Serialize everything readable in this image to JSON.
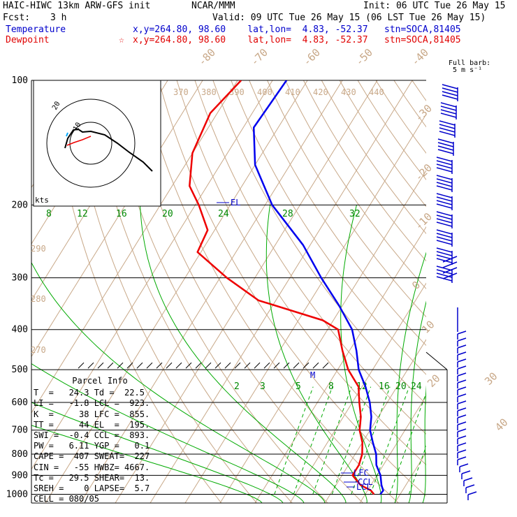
{
  "header": {
    "model": "HAIC-HIWC 13km ARW-GFS init",
    "org": "NCAR/MMM",
    "init": "Init: 06 UTC Tue 26 May 15",
    "fcst_label": "Fcst:",
    "fcst_value": "3 h",
    "valid": "Valid: 09 UTC Tue 26 May 15 (06 LST Tue 26 May 15)",
    "temp_label": "Temperature",
    "temp_loc": "x,y=264.80, 98.60    lat,lon=  4.83, -52.37   stn=SOCA,81405",
    "dew_label": "Dewpoint",
    "dew_marker": "☆",
    "dew_loc": "x,y=264.80, 98.60    lat,lon=  4.83, -52.37   stn=SOCA,81405",
    "barb_title": "Full barb:",
    "barb_unit": "5 m s⁻¹"
  },
  "parcel_info": {
    "title": "Parcel Info",
    "rows": [
      "T  =   24.3 Td =  22.5",
      "LI =   -1.8 LCL =  923.",
      "K  =     38 LFC =  855.",
      "TT =     44 EL  =  195.",
      "SWI =  -0.4 CCL =  893.",
      "PW =   6.11 YGP =   0.1",
      "CAPE =  407 SWEAT=  227",
      "CIN =   -55 HWBZ= 4667.",
      "Tc =   29.5 SHEAR=  13.",
      "SREH =    0 LAPSE=  5.7",
      "CELL = 080/05"
    ]
  },
  "chart_data": {
    "type": "line",
    "subtype": "skew-T log-P sounding",
    "pressure_levels": [
      "100",
      "200",
      "300",
      "400",
      "500",
      "600",
      "700",
      "800",
      "900",
      "1000"
    ],
    "isotherm_labels": [
      "-80",
      "-70",
      "-60",
      "-50",
      "-40",
      "-30",
      "-20",
      "-10",
      "0",
      "10",
      "20",
      "30",
      "40"
    ],
    "theta_labels": [
      "370",
      "380",
      "390",
      "400",
      "410",
      "420",
      "430",
      "440"
    ],
    "theta_low_labels": [
      "290",
      "280",
      "270"
    ],
    "mixing_ratio_upper": [
      "8",
      "12",
      "16",
      "20",
      "24",
      "28",
      "32"
    ],
    "mixing_ratio_lower": [
      "2",
      "3",
      "5",
      "8",
      "12",
      "16",
      "20",
      "24"
    ],
    "hodograph": {
      "speed_labels": [
        "20",
        "10"
      ],
      "unit": "kts"
    },
    "level_labels": {
      "el": "EL",
      "lfc": "LFC",
      "ccl": "CCL",
      "lcl": "LCL",
      "m": "M"
    },
    "series": [
      {
        "name": "Temperature",
        "color": "#0000ee",
        "points": [
          [
            100,
            -76
          ],
          [
            130,
            -77
          ],
          [
            160,
            -70
          ],
          [
            200,
            -58
          ],
          [
            250,
            -42
          ],
          [
            300,
            -31
          ],
          [
            350,
            -21
          ],
          [
            400,
            -13
          ],
          [
            450,
            -8
          ],
          [
            500,
            -4
          ],
          [
            550,
            1
          ],
          [
            600,
            5
          ],
          [
            650,
            8
          ],
          [
            700,
            10
          ],
          [
            750,
            13
          ],
          [
            800,
            16
          ],
          [
            850,
            18
          ],
          [
            900,
            21
          ],
          [
            950,
            23
          ],
          [
            980,
            24.5
          ],
          [
            1000,
            24.3
          ]
        ]
      },
      {
        "name": "Dewpoint",
        "color": "#ee0000",
        "points": [
          [
            100,
            -89
          ],
          [
            120,
            -92
          ],
          [
            150,
            -90
          ],
          [
            180,
            -85
          ],
          [
            200,
            -79
          ],
          [
            230,
            -72
          ],
          [
            260,
            -71
          ],
          [
            300,
            -58
          ],
          [
            340,
            -45
          ],
          [
            380,
            -23
          ],
          [
            400,
            -17
          ],
          [
            450,
            -12
          ],
          [
            500,
            -7
          ],
          [
            550,
            -1
          ],
          [
            600,
            2
          ],
          [
            650,
            5
          ],
          [
            700,
            7
          ],
          [
            750,
            10
          ],
          [
            800,
            12
          ],
          [
            850,
            13
          ],
          [
            900,
            13
          ],
          [
            950,
            17
          ],
          [
            980,
            21
          ],
          [
            1000,
            22.5
          ]
        ]
      }
    ],
    "barbs_upper": 11,
    "barbs_lower": 24,
    "colors": {
      "isobar": "#000000",
      "isotherm": "#c8a888",
      "adiabat": "#c8a888",
      "moist": "#00aa00",
      "temp": "#0000ee",
      "dew": "#ee0000",
      "barb": "#0000cc"
    }
  }
}
